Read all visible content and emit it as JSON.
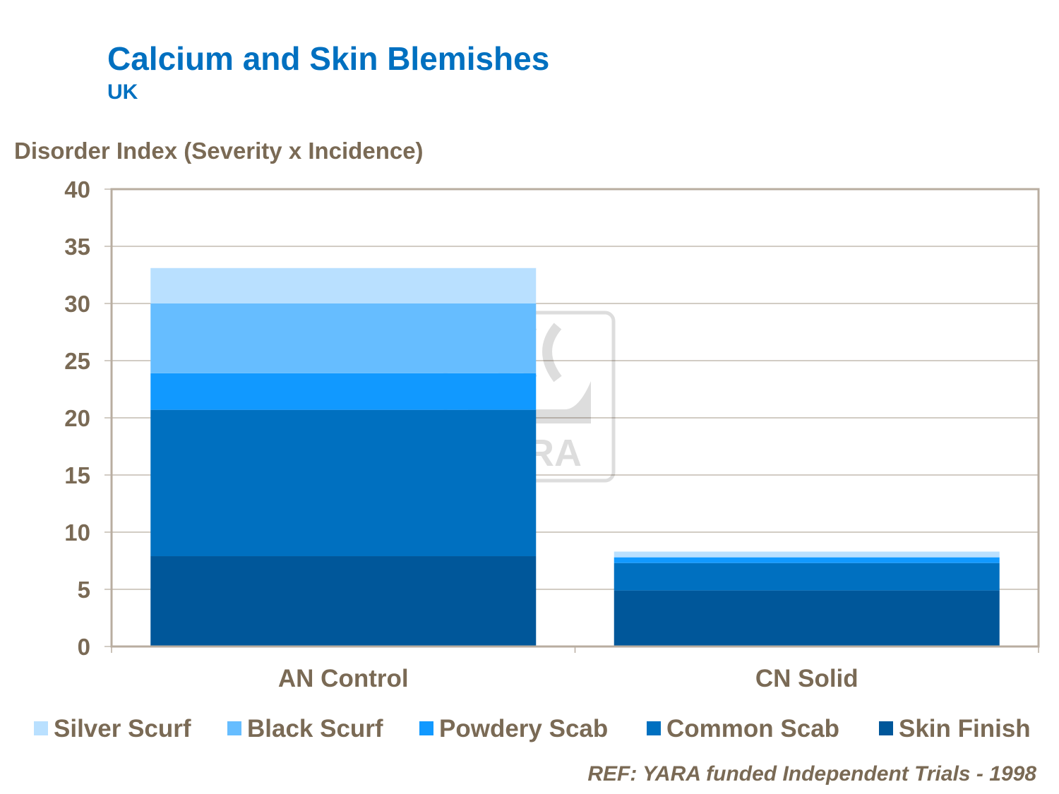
{
  "chart_data": {
    "type": "bar",
    "stacked": true,
    "title": "Calcium and Skin Blemishes",
    "subtitle": "UK",
    "ylabel": "Disorder Index (Severity x Incidence)",
    "xlabel": "",
    "ylim": [
      0,
      40
    ],
    "yticks": [
      0,
      5,
      10,
      15,
      20,
      25,
      30,
      35,
      40
    ],
    "grid": true,
    "legend": "bottom",
    "categories": [
      "AN Control",
      "CN Solid"
    ],
    "series": [
      {
        "name": "Skin Finish",
        "color": "#00579A",
        "values": [
          7.9,
          4.9
        ]
      },
      {
        "name": "Common Scab",
        "color": "#0070C0",
        "values": [
          12.8,
          2.4
        ]
      },
      {
        "name": "Powdery Scab",
        "color": "#1199FF",
        "values": [
          3.2,
          0.5
        ]
      },
      {
        "name": "Black Scurf",
        "color": "#66BDFF",
        "values": [
          6.1,
          0
        ]
      },
      {
        "name": "Silver Scurf",
        "color": "#B9E0FF",
        "values": [
          3.1,
          0.5
        ]
      }
    ],
    "legend_order": [
      "Silver Scurf",
      "Black Scurf",
      "Powdery Scab",
      "Common Scab",
      "Skin Finish"
    ]
  },
  "watermark": "YARA",
  "reference": "REF: YARA funded Independent Trials - 1998"
}
